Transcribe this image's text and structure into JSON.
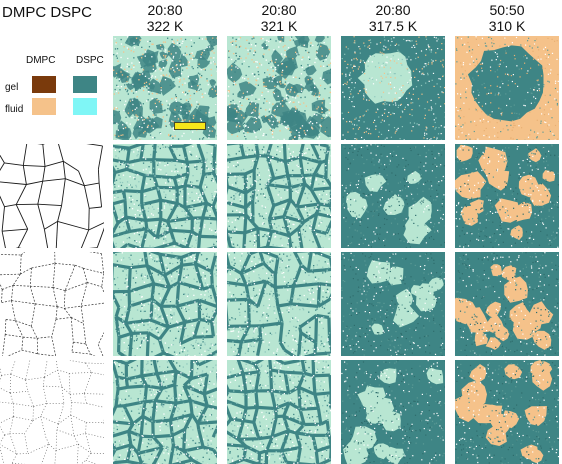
{
  "header": {
    "title": "DMPC DSPC"
  },
  "columns": [
    {
      "ratio": "20:80",
      "temperature": "322 K"
    },
    {
      "ratio": "20:80",
      "temperature": "321 K"
    },
    {
      "ratio": "20:80",
      "temperature": "317.5 K"
    },
    {
      "ratio": "50:50",
      "temperature": "310 K"
    }
  ],
  "legend": {
    "col_dmpc": "DMPC",
    "col_dspc": "DSPC",
    "row_gel": "gel",
    "row_fluid": "fluid"
  },
  "colors": {
    "dmpc_gel": "#7a3a0c",
    "dspc_gel": "#3e8585",
    "dmpc_fluid": "#f5c28a",
    "dspc_fluid": "#7ff6f6",
    "light_speckle": "#b8e6d2",
    "scale_bar": "#f6e61a"
  }
}
